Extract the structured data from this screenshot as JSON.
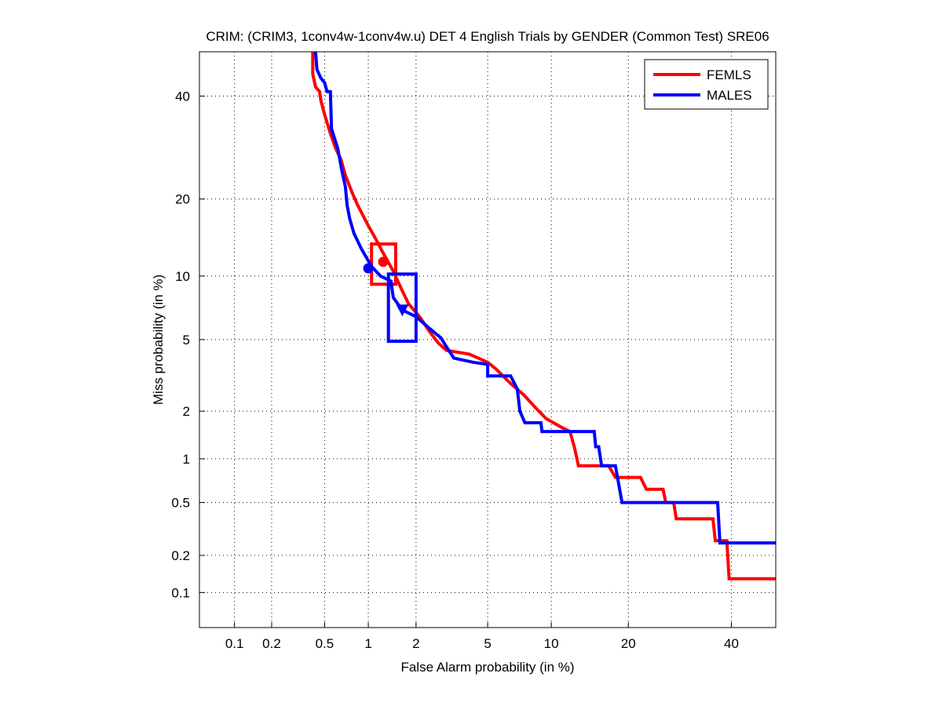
{
  "chart_data": {
    "type": "line",
    "title": "CRIM: (CRIM3, 1conv4w-1conv4w.u) DET 4 English Trials by GENDER (Common Test) SRE06",
    "xlabel": "False Alarm probability (in %)",
    "ylabel": "Miss probability (in %)",
    "scale": "normal-deviate (DET)",
    "xlim": [
      0.05,
      50
    ],
    "ylim": [
      0.05,
      50
    ],
    "grid": true,
    "legend_position": "top-right",
    "xticks": [
      0.1,
      0.2,
      0.5,
      1,
      2,
      5,
      10,
      20,
      40
    ],
    "xtick_labels": [
      "0.1",
      "0.2",
      "0.5",
      "1",
      "2",
      "5",
      "10",
      "20",
      "40"
    ],
    "yticks": [
      0.1,
      0.2,
      0.5,
      1,
      2,
      5,
      10,
      20,
      40
    ],
    "ytick_labels": [
      "0.1",
      "0.2",
      "0.5",
      "1",
      "2",
      "5",
      "10",
      "20",
      "40"
    ],
    "series": [
      {
        "name": "FEMLS",
        "color": "#ff0000",
        "x": [
          0.41,
          0.41,
          0.43,
          0.46,
          0.47,
          0.5,
          0.55,
          0.6,
          0.65,
          0.7,
          0.78,
          0.85,
          1.0,
          1.1,
          1.25,
          1.45,
          1.6,
          1.8,
          2.1,
          2.4,
          2.7,
          3.0,
          4.0,
          5.0,
          5.5,
          6.5,
          7.5,
          8.5,
          9.5,
          11,
          12,
          12.5,
          13,
          17,
          18,
          22,
          23,
          26,
          26.5,
          28,
          28.5,
          36,
          36.5,
          39,
          39.5,
          50
        ],
        "y": [
          50,
          45,
          42,
          41,
          39,
          36,
          32,
          29,
          27,
          24,
          21,
          19,
          16,
          14.5,
          12.5,
          10.5,
          9,
          7.5,
          6.5,
          5.5,
          4.8,
          4.4,
          4.2,
          3.8,
          3.5,
          2.9,
          2.5,
          2.1,
          1.8,
          1.6,
          1.5,
          1.2,
          0.9,
          0.9,
          0.75,
          0.75,
          0.62,
          0.62,
          0.5,
          0.5,
          0.38,
          0.38,
          0.26,
          0.26,
          0.13,
          0.13
        ],
        "min_dcf_point": {
          "x": 1.25,
          "y": 11.5,
          "marker": "circle"
        },
        "confidence_box": {
          "x": [
            1.05,
            1.5
          ],
          "y": [
            9.2,
            13.6
          ]
        }
      },
      {
        "name": "MALES",
        "color": "#0000ff",
        "x": [
          0.43,
          0.44,
          0.47,
          0.5,
          0.52,
          0.55,
          0.56,
          0.62,
          0.66,
          0.7,
          0.72,
          0.75,
          0.8,
          0.9,
          1.05,
          1.2,
          1.4,
          1.45,
          1.65,
          2.0,
          2.4,
          2.8,
          3.0,
          3.3,
          4.2,
          5.0,
          5.0,
          6.5,
          7.0,
          7.2,
          7.6,
          9.0,
          9.1,
          15,
          15.2,
          15.6,
          16,
          18,
          19,
          37,
          37.5,
          50
        ],
        "y": [
          50,
          46,
          44,
          43,
          41,
          41,
          33,
          29,
          25,
          22,
          19,
          17,
          15,
          13,
          11,
          10,
          9.5,
          8,
          7,
          6.5,
          5.7,
          5.1,
          4.6,
          4.0,
          3.8,
          3.7,
          3.2,
          3.2,
          2.7,
          2.0,
          1.7,
          1.7,
          1.5,
          1.5,
          1.2,
          1.2,
          0.9,
          0.9,
          0.5,
          0.5,
          0.25,
          0.25
        ],
        "min_dcf_point": {
          "x": 1.0,
          "y": 10.8,
          "marker": "circle"
        },
        "actual_dcf_point": {
          "x": 1.65,
          "y": 7.0,
          "marker": "triangle-down"
        },
        "confidence_box": {
          "x": [
            1.35,
            2.0
          ],
          "y": [
            4.9,
            10.2
          ]
        }
      }
    ]
  }
}
